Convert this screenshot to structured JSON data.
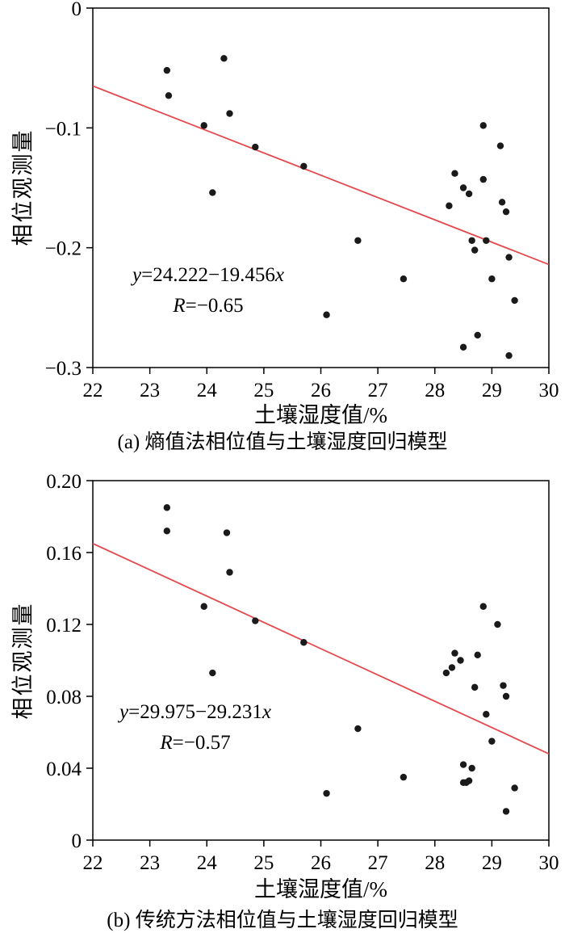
{
  "figure": {
    "background": "#ffffff",
    "point_color": "#1a1a1a",
    "line_color": "#e5484d",
    "frame_color": "#000000"
  },
  "chart_data": [
    {
      "type": "scatter",
      "id": "a",
      "caption": "(a) 熵值法相位值与土壤湿度回归模型",
      "xlabel": "土壤湿度值/%",
      "ylabel": "相位观测量",
      "xlim": [
        22,
        30
      ],
      "ylim": [
        -0.3,
        0
      ],
      "xticks": [
        22,
        23,
        24,
        25,
        26,
        27,
        28,
        29,
        30
      ],
      "xtick_labels": [
        "22",
        "23",
        "24",
        "25",
        "26",
        "27",
        "28",
        "29",
        "30"
      ],
      "yticks": [
        0,
        -0.1,
        -0.2,
        -0.3
      ],
      "ytick_labels": [
        "0",
        "−0.1",
        "−0.2",
        "−0.3"
      ],
      "grid": false,
      "legend": "none",
      "points": [
        [
          23.3,
          -0.052
        ],
        [
          23.33,
          -0.073
        ],
        [
          23.95,
          -0.098
        ],
        [
          24.3,
          -0.042
        ],
        [
          24.4,
          -0.088
        ],
        [
          24.1,
          -0.154
        ],
        [
          24.85,
          -0.116
        ],
        [
          25.7,
          -0.132
        ],
        [
          26.1,
          -0.256
        ],
        [
          26.65,
          -0.194
        ],
        [
          27.45,
          -0.226
        ],
        [
          28.25,
          -0.165
        ],
        [
          28.35,
          -0.138
        ],
        [
          28.5,
          -0.15
        ],
        [
          28.6,
          -0.155
        ],
        [
          28.65,
          -0.194
        ],
        [
          28.5,
          -0.283
        ],
        [
          28.75,
          -0.273
        ],
        [
          28.7,
          -0.202
        ],
        [
          28.85,
          -0.143
        ],
        [
          28.85,
          -0.098
        ],
        [
          28.9,
          -0.194
        ],
        [
          29.0,
          -0.226
        ],
        [
          29.15,
          -0.115
        ],
        [
          29.18,
          -0.162
        ],
        [
          29.25,
          -0.17
        ],
        [
          29.3,
          -0.208
        ],
        [
          29.3,
          -0.29
        ],
        [
          29.4,
          -0.244
        ]
      ],
      "regression_line": {
        "x": [
          22,
          30
        ],
        "y": [
          -0.065,
          -0.214
        ]
      },
      "annotation": {
        "var_y": "y",
        "equation": "=24.222−19.456",
        "var_x": "x",
        "r_label": "R",
        "r_value": "=−0.65"
      }
    },
    {
      "type": "scatter",
      "id": "b",
      "caption": "(b) 传统方法相位值与土壤湿度回归模型",
      "xlabel": "土壤湿度值/%",
      "ylabel": "相位观测量",
      "xlim": [
        22,
        30
      ],
      "ylim": [
        0,
        0.2
      ],
      "xticks": [
        22,
        23,
        24,
        25,
        26,
        27,
        28,
        29,
        30
      ],
      "xtick_labels": [
        "22",
        "23",
        "24",
        "25",
        "26",
        "27",
        "28",
        "29",
        "30"
      ],
      "yticks": [
        0.2,
        0.16,
        0.12,
        0.08,
        0.04,
        0
      ],
      "ytick_labels": [
        "0.20",
        "0.16",
        "0.12",
        "0.08",
        "0.04",
        "0"
      ],
      "grid": false,
      "legend": "none",
      "points": [
        [
          23.3,
          0.185
        ],
        [
          23.3,
          0.172
        ],
        [
          23.95,
          0.13
        ],
        [
          24.1,
          0.093
        ],
        [
          24.35,
          0.171
        ],
        [
          24.4,
          0.149
        ],
        [
          24.85,
          0.122
        ],
        [
          25.7,
          0.11
        ],
        [
          26.1,
          0.026
        ],
        [
          26.65,
          0.062
        ],
        [
          27.45,
          0.035
        ],
        [
          28.2,
          0.093
        ],
        [
          28.3,
          0.096
        ],
        [
          28.35,
          0.104
        ],
        [
          28.45,
          0.1
        ],
        [
          28.5,
          0.042
        ],
        [
          28.5,
          0.032
        ],
        [
          28.55,
          0.032
        ],
        [
          28.6,
          0.033
        ],
        [
          28.65,
          0.04
        ],
        [
          28.7,
          0.085
        ],
        [
          28.75,
          0.103
        ],
        [
          28.85,
          0.13
        ],
        [
          28.9,
          0.07
        ],
        [
          29.0,
          0.055
        ],
        [
          29.1,
          0.12
        ],
        [
          29.2,
          0.086
        ],
        [
          29.25,
          0.08
        ],
        [
          29.25,
          0.016
        ],
        [
          29.4,
          0.029
        ]
      ],
      "regression_line": {
        "x": [
          22,
          30
        ],
        "y": [
          0.165,
          0.048
        ]
      },
      "annotation": {
        "var_y": "y",
        "equation": "=29.975−29.231",
        "var_x": "x",
        "r_label": "R",
        "r_value": "=−0.57"
      }
    }
  ]
}
